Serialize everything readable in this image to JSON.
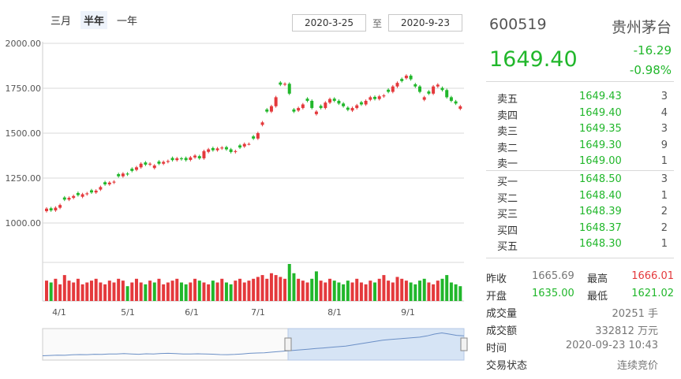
{
  "ranges": [
    {
      "label": "三月",
      "active": false
    },
    {
      "label": "半年",
      "active": true
    },
    {
      "label": "一年",
      "active": false
    }
  ],
  "date_range": {
    "start": "2020-3-25",
    "separator": "至",
    "end": "2020-9-23"
  },
  "chart_data": {
    "type": "candlestick",
    "y_ticks": [
      "2000.00",
      "1750.00",
      "1500.00",
      "1250.00",
      "1000.00"
    ],
    "ylim": [
      1000,
      2000
    ],
    "x_ticks": [
      "4/1",
      "5/1",
      "6/1",
      "7/1",
      "8/1",
      "9/1"
    ],
    "closes": [
      1080,
      1070,
      1085,
      1100,
      1130,
      1140,
      1150,
      1155,
      1160,
      1165,
      1170,
      1180,
      1200,
      1215,
      1225,
      1230,
      1260,
      1275,
      1270,
      1290,
      1310,
      1330,
      1325,
      1330,
      1320,
      1330,
      1340,
      1345,
      1350,
      1360,
      1355,
      1350,
      1365,
      1375,
      1360,
      1400,
      1410,
      1405,
      1415,
      1420,
      1410,
      1395,
      1400,
      1420,
      1440,
      1440,
      1470,
      1500,
      1560,
      1620,
      1650,
      1700,
      1770,
      1775,
      1720,
      1620,
      1640,
      1660,
      1680,
      1640,
      1620,
      1640,
      1670,
      1690,
      1680,
      1665,
      1650,
      1630,
      1640,
      1655,
      1660,
      1680,
      1700,
      1690,
      1705,
      1710,
      1730,
      1760,
      1780,
      1790,
      1820,
      1800,
      1760,
      1730,
      1700,
      1720,
      1760,
      1770,
      1740,
      1700,
      1680,
      1665,
      1649.4
    ],
    "volumes": [
      0.55,
      0.5,
      0.6,
      0.45,
      0.7,
      0.55,
      0.5,
      0.6,
      0.45,
      0.5,
      0.55,
      0.6,
      0.5,
      0.45,
      0.55,
      0.5,
      0.6,
      0.55,
      0.4,
      0.5,
      0.6,
      0.5,
      0.45,
      0.55,
      0.5,
      0.6,
      0.45,
      0.5,
      0.55,
      0.6,
      0.5,
      0.45,
      0.5,
      0.6,
      0.55,
      0.5,
      0.45,
      0.55,
      0.5,
      0.6,
      0.5,
      0.45,
      0.55,
      0.6,
      0.5,
      0.55,
      0.6,
      0.65,
      0.7,
      0.6,
      0.75,
      0.7,
      0.65,
      0.6,
      1.0,
      0.75,
      0.6,
      0.55,
      0.5,
      0.6,
      0.8,
      0.55,
      0.5,
      0.6,
      0.55,
      0.5,
      0.45,
      0.55,
      0.5,
      0.6,
      0.5,
      0.45,
      0.55,
      0.5,
      0.6,
      0.7,
      0.55,
      0.5,
      0.65,
      0.6,
      0.55,
      0.5,
      0.45,
      0.55,
      0.6,
      0.5,
      0.45,
      0.55,
      0.6,
      0.7,
      0.5,
      0.45,
      0.4
    ],
    "navigator_values": [
      1000,
      1005,
      1010,
      1008,
      1015,
      1020,
      1018,
      1025,
      1022,
      1030,
      1028,
      1035,
      1030,
      1025,
      1032,
      1030,
      1038,
      1040,
      1035,
      1030,
      1028,
      1032,
      1030,
      1026,
      1020,
      1018,
      1022,
      1030,
      1040,
      1045,
      1050,
      1060,
      1070,
      1080,
      1090,
      1100,
      1110,
      1120,
      1130,
      1140,
      1150,
      1160,
      1180,
      1200,
      1220,
      1240,
      1260,
      1270,
      1280,
      1290,
      1300,
      1310,
      1330,
      1360,
      1380,
      1360,
      1340,
      1330
    ]
  },
  "quote": {
    "code": "600519",
    "name": "贵州茅台",
    "price": "1649.40",
    "change": "-16.29",
    "change_pct": "-0.98%"
  },
  "sell": [
    {
      "label": "卖五",
      "price": "1649.43",
      "vol": "3"
    },
    {
      "label": "卖四",
      "price": "1649.40",
      "vol": "4"
    },
    {
      "label": "卖三",
      "price": "1649.35",
      "vol": "3"
    },
    {
      "label": "卖二",
      "price": "1649.30",
      "vol": "9"
    },
    {
      "label": "卖一",
      "price": "1649.00",
      "vol": "1"
    }
  ],
  "buy": [
    {
      "label": "买一",
      "price": "1648.50",
      "vol": "3"
    },
    {
      "label": "买二",
      "price": "1648.40",
      "vol": "1"
    },
    {
      "label": "买三",
      "price": "1648.39",
      "vol": "2"
    },
    {
      "label": "买四",
      "price": "1648.37",
      "vol": "2"
    },
    {
      "label": "买五",
      "price": "1648.30",
      "vol": "1"
    }
  ],
  "stats": {
    "prev_close_label": "昨收",
    "prev_close": "1665.69",
    "high_label": "最高",
    "high": "1666.01",
    "open_label": "开盘",
    "open": "1635.00",
    "low_label": "最低",
    "low": "1621.02",
    "volume_label": "成交量",
    "volume": "20251 手",
    "turnover_label": "成交额",
    "turnover": "332812 万元",
    "time_label": "时间",
    "time": "2020-09-23 10:43",
    "status_label": "交易状态",
    "status": "连续竞价"
  },
  "colors": {
    "up": "#e4393c",
    "down": "#21b72b",
    "grid": "#d8d8d8",
    "nav_fill": "#d6e4f5",
    "nav_line": "#6b8fc6"
  }
}
